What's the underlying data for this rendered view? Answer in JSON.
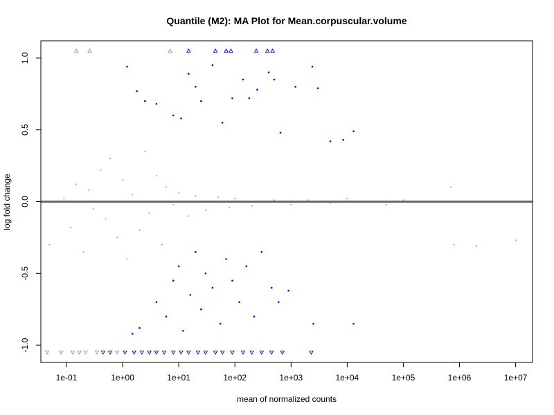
{
  "chart_data": {
    "type": "scatter",
    "title": "Quantile (M2): MA Plot for Mean.corpuscular.volume",
    "xlabel": "mean of normalized counts",
    "ylabel": "log fold change",
    "x_scale": "log10",
    "xlim": [
      0.035,
      20000000
    ],
    "ylim": [
      -1.12,
      1.12
    ],
    "x_ticks": [
      {
        "value": 0.1,
        "label": "1e-01"
      },
      {
        "value": 1,
        "label": "1e+00"
      },
      {
        "value": 10,
        "label": "1e+01"
      },
      {
        "value": 100,
        "label": "1e+02"
      },
      {
        "value": 1000,
        "label": "1e+03"
      },
      {
        "value": 10000,
        "label": "1e+04"
      },
      {
        "value": 100000,
        "label": "1e+05"
      },
      {
        "value": 1000000,
        "label": "1e+06"
      },
      {
        "value": 10000000,
        "label": "1e+07"
      }
    ],
    "y_ticks": [
      {
        "value": -1.0,
        "label": "-1.0"
      },
      {
        "value": -0.5,
        "label": "-0.5"
      },
      {
        "value": 0.0,
        "label": "0.0"
      },
      {
        "value": 0.5,
        "label": "0.5"
      },
      {
        "value": 1.0,
        "label": "1.0"
      }
    ],
    "reference_line": {
      "y": 0,
      "color": "#666666"
    },
    "grid": false,
    "legend": "none",
    "colors": {
      "non_significant": "#999999",
      "significant": "#0000ff",
      "axes": "#000000"
    },
    "series": [
      {
        "points": [
          [
            0.09,
            0.02
          ],
          [
            0.12,
            -0.18
          ],
          [
            0.15,
            0.12
          ],
          [
            0.2,
            -0.35
          ],
          [
            0.25,
            0.08
          ],
          [
            0.3,
            -0.05
          ],
          [
            0.4,
            0.22
          ],
          [
            0.5,
            -0.12
          ],
          [
            0.6,
            0.3
          ],
          [
            0.8,
            -0.25
          ],
          [
            1,
            0.15
          ],
          [
            1.2,
            -0.4
          ],
          [
            1.5,
            0.05
          ],
          [
            2,
            -0.2
          ],
          [
            2.5,
            0.35
          ],
          [
            3,
            -0.08
          ],
          [
            4,
            0.18
          ],
          [
            5,
            -0.3
          ],
          [
            6,
            0.1
          ],
          [
            8,
            -0.02
          ],
          [
            10,
            0.06
          ],
          [
            15,
            -0.1
          ],
          [
            20,
            0.04
          ],
          [
            30,
            -0.06
          ],
          [
            50,
            0.03
          ],
          [
            80,
            -0.04
          ],
          [
            100,
            0.02
          ],
          [
            200,
            -0.03
          ],
          [
            500,
            0.01
          ],
          [
            1000,
            -0.02
          ],
          [
            2000,
            0.01
          ],
          [
            5000,
            -0.01
          ],
          [
            10000,
            0.02
          ],
          [
            50000,
            -0.02
          ],
          [
            100000,
            0.01
          ],
          [
            700000,
            0.1
          ],
          [
            800000,
            -0.3
          ],
          [
            2000000,
            -0.31
          ],
          [
            10000000,
            -0.27
          ],
          [
            0.05,
            -0.3
          ]
        ]
      },
      {
        "points": [
          [
            1.2,
            0.94
          ],
          [
            1.8,
            0.77
          ],
          [
            2.5,
            0.7
          ],
          [
            4,
            0.68
          ],
          [
            8,
            0.6
          ],
          [
            11,
            0.58
          ],
          [
            15,
            0.89
          ],
          [
            20,
            0.8
          ],
          [
            25,
            0.7
          ],
          [
            40,
            0.95
          ],
          [
            60,
            0.55
          ],
          [
            90,
            0.72
          ],
          [
            140,
            0.85
          ],
          [
            180,
            0.72
          ],
          [
            250,
            0.78
          ],
          [
            400,
            0.9
          ],
          [
            500,
            0.85
          ],
          [
            650,
            0.48
          ],
          [
            1200,
            0.8
          ],
          [
            2400,
            0.94
          ],
          [
            3000,
            0.79
          ],
          [
            5000,
            0.42
          ],
          [
            8500,
            0.43
          ],
          [
            13000,
            0.49
          ],
          [
            4,
            -0.7
          ],
          [
            6,
            -0.8
          ],
          [
            8,
            -0.55
          ],
          [
            10,
            -0.45
          ],
          [
            12,
            -0.9
          ],
          [
            16,
            -0.65
          ],
          [
            20,
            -0.35
          ],
          [
            25,
            -0.75
          ],
          [
            30,
            -0.5
          ],
          [
            40,
            -0.6
          ],
          [
            55,
            -0.85
          ],
          [
            70,
            -0.4
          ],
          [
            90,
            -0.55
          ],
          [
            120,
            -0.7
          ],
          [
            160,
            -0.45
          ],
          [
            220,
            -0.8
          ],
          [
            300,
            -0.35
          ],
          [
            450,
            -0.6
          ],
          [
            600,
            -0.7
          ],
          [
            900,
            -0.62
          ],
          [
            2500,
            -0.85
          ],
          [
            13000,
            -0.85
          ],
          [
            2,
            -0.88
          ],
          [
            1.5,
            -0.92
          ]
        ]
      }
    ],
    "clipped_markers": [
      {
        "x": 0.15,
        "y": 1.05,
        "shape": "triangle-up",
        "group": "non_significant"
      },
      {
        "x": 0.26,
        "y": 1.05,
        "shape": "triangle-up",
        "group": "non_significant"
      },
      {
        "x": 7,
        "y": 1.05,
        "shape": "triangle-up",
        "group": "non_significant"
      },
      {
        "x": 15,
        "y": 1.05,
        "shape": "triangle-up",
        "group": "significant"
      },
      {
        "x": 45,
        "y": 1.05,
        "shape": "triangle-up",
        "group": "significant"
      },
      {
        "x": 70,
        "y": 1.05,
        "shape": "triangle-up",
        "group": "significant"
      },
      {
        "x": 85,
        "y": 1.05,
        "shape": "triangle-up",
        "group": "significant"
      },
      {
        "x": 240,
        "y": 1.05,
        "shape": "triangle-up",
        "group": "significant"
      },
      {
        "x": 380,
        "y": 1.05,
        "shape": "triangle-up",
        "group": "significant"
      },
      {
        "x": 470,
        "y": 1.05,
        "shape": "triangle-up",
        "group": "significant"
      },
      {
        "x": 0.045,
        "y": -1.05,
        "shape": "triangle-down",
        "group": "non_significant"
      },
      {
        "x": 0.08,
        "y": -1.05,
        "shape": "triangle-down",
        "group": "non_significant"
      },
      {
        "x": 0.13,
        "y": -1.05,
        "shape": "triangle-down",
        "group": "non_significant"
      },
      {
        "x": 0.17,
        "y": -1.05,
        "shape": "triangle-down",
        "group": "non_significant"
      },
      {
        "x": 0.22,
        "y": -1.05,
        "shape": "triangle-down",
        "group": "non_significant"
      },
      {
        "x": 0.35,
        "y": -1.05,
        "shape": "triangle-down",
        "group": "non_significant"
      },
      {
        "x": 0.45,
        "y": -1.05,
        "shape": "triangle-down",
        "group": "significant"
      },
      {
        "x": 0.6,
        "y": -1.05,
        "shape": "triangle-down",
        "group": "significant"
      },
      {
        "x": 0.8,
        "y": -1.05,
        "shape": "triangle-down",
        "group": "non_significant"
      },
      {
        "x": 1.1,
        "y": -1.05,
        "shape": "triangle-down",
        "group": "significant"
      },
      {
        "x": 1.6,
        "y": -1.05,
        "shape": "triangle-down",
        "group": "significant"
      },
      {
        "x": 2.2,
        "y": -1.05,
        "shape": "triangle-down",
        "group": "significant"
      },
      {
        "x": 3.0,
        "y": -1.05,
        "shape": "triangle-down",
        "group": "significant"
      },
      {
        "x": 4.0,
        "y": -1.05,
        "shape": "triangle-down",
        "group": "significant"
      },
      {
        "x": 5.5,
        "y": -1.05,
        "shape": "triangle-down",
        "group": "significant"
      },
      {
        "x": 8,
        "y": -1.05,
        "shape": "triangle-down",
        "group": "significant"
      },
      {
        "x": 11,
        "y": -1.05,
        "shape": "triangle-down",
        "group": "significant"
      },
      {
        "x": 15,
        "y": -1.05,
        "shape": "triangle-down",
        "group": "significant"
      },
      {
        "x": 22,
        "y": -1.05,
        "shape": "triangle-down",
        "group": "significant"
      },
      {
        "x": 30,
        "y": -1.05,
        "shape": "triangle-down",
        "group": "significant"
      },
      {
        "x": 45,
        "y": -1.05,
        "shape": "triangle-down",
        "group": "significant"
      },
      {
        "x": 60,
        "y": -1.05,
        "shape": "triangle-down",
        "group": "significant"
      },
      {
        "x": 90,
        "y": -1.05,
        "shape": "triangle-down",
        "group": "significant"
      },
      {
        "x": 140,
        "y": -1.05,
        "shape": "triangle-down",
        "group": "significant"
      },
      {
        "x": 200,
        "y": -1.05,
        "shape": "triangle-down",
        "group": "significant"
      },
      {
        "x": 300,
        "y": -1.05,
        "shape": "triangle-down",
        "group": "significant"
      },
      {
        "x": 450,
        "y": -1.05,
        "shape": "triangle-down",
        "group": "significant"
      },
      {
        "x": 700,
        "y": -1.05,
        "shape": "triangle-down",
        "group": "significant"
      },
      {
        "x": 2300,
        "y": -1.05,
        "shape": "triangle-down",
        "group": "significant"
      }
    ]
  }
}
